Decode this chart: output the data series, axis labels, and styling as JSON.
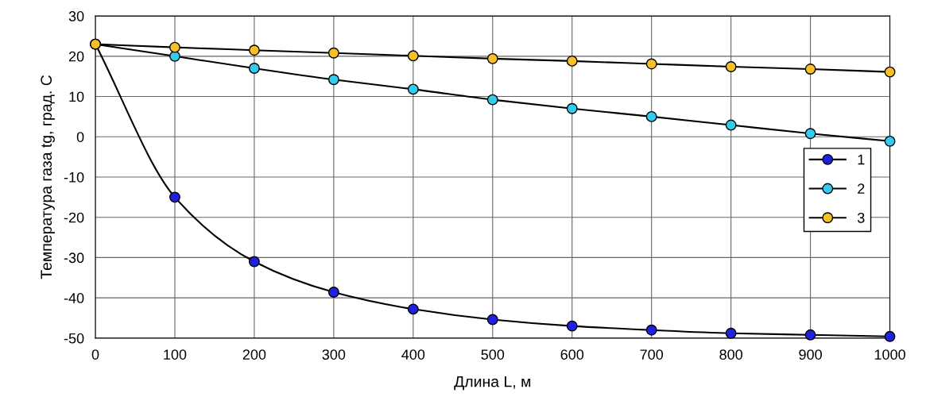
{
  "chart_data": {
    "type": "line",
    "xlabel": "Длина L, м",
    "ylabel": "Температура газа tg, град. С",
    "x": [
      0,
      100,
      200,
      300,
      400,
      500,
      600,
      700,
      800,
      900,
      1000
    ],
    "series": [
      {
        "name": "1",
        "color": "#2020e0",
        "values": [
          23,
          -15,
          -31,
          -38.6,
          -42.8,
          -45.4,
          -47,
          -48,
          -48.8,
          -49.2,
          -49.6
        ]
      },
      {
        "name": "2",
        "color": "#33ccee",
        "values": [
          23,
          20,
          17,
          14.2,
          11.8,
          9.2,
          7,
          5,
          2.9,
          0.8,
          -1.1
        ]
      },
      {
        "name": "3",
        "color": "#f5c02a",
        "values": [
          23,
          22.2,
          21.5,
          20.8,
          20.1,
          19.4,
          18.8,
          18.1,
          17.4,
          16.8,
          16.1
        ]
      }
    ],
    "xlim": [
      0,
      1000
    ],
    "xticks": [
      0,
      100,
      200,
      300,
      400,
      500,
      600,
      700,
      800,
      900,
      1000
    ],
    "ylim": [
      -50,
      30
    ],
    "yticks": [
      -50,
      -40,
      -30,
      -20,
      -10,
      0,
      10,
      20,
      30
    ],
    "grid": true,
    "legend": "center right",
    "marker": "circle",
    "line_style": "solid"
  }
}
